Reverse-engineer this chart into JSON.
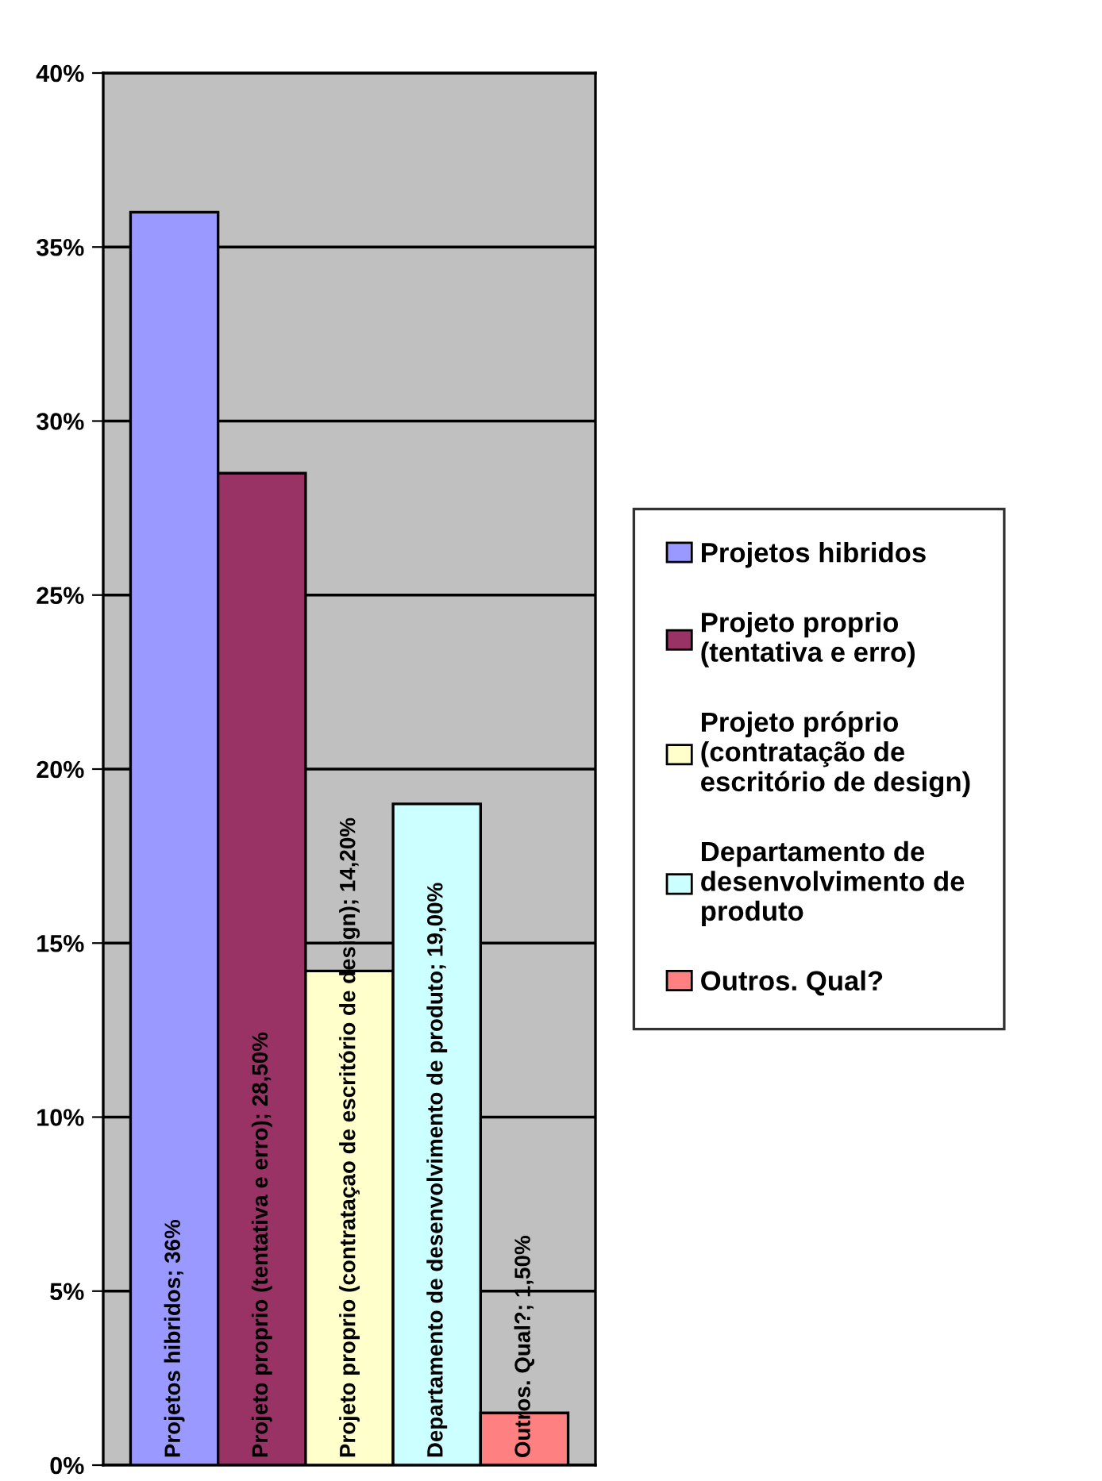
{
  "chart_data": {
    "type": "bar",
    "categories": [
      null
    ],
    "series": [
      {
        "name": "Projetos hibridos",
        "color": "#9999ff",
        "values": [
          36
        ],
        "value_labels": [
          "Projetos hibridos; 36%"
        ]
      },
      {
        "name": "Projeto proprio (tentativa e erro)",
        "color": "#993366",
        "values": [
          28.5
        ],
        "value_labels": [
          "Projeto proprio (tentativa e erro); 28,50%"
        ]
      },
      {
        "name": "Projeto próprio (contratação de escritório de design)",
        "color": "#ffffcc",
        "values": [
          14.2
        ],
        "value_labels": [
          "Projeto proprio (contrataçao de escritório de design); 14,20%"
        ]
      },
      {
        "name": "Departamento de desenvolvimento de produto",
        "color": "#ccffff",
        "values": [
          19
        ],
        "value_labels": [
          "Departamento de desenvolvimento de produto; 19,00%"
        ]
      },
      {
        "name": "Outros. Qual?",
        "color": "#ff8080",
        "values": [
          1.5
        ],
        "value_labels": [
          "Outros. Qual?; 1,50%"
        ]
      }
    ],
    "ylim": [
      0,
      40
    ],
    "yticks": [
      {
        "value": 0,
        "label": "0%"
      },
      {
        "value": 5,
        "label": "5%"
      },
      {
        "value": 10,
        "label": "10%"
      },
      {
        "value": 15,
        "label": "15%"
      },
      {
        "value": 20,
        "label": "20%"
      },
      {
        "value": 25,
        "label": "25%"
      },
      {
        "value": 30,
        "label": "30%"
      },
      {
        "value": 35,
        "label": "35%"
      },
      {
        "value": 40,
        "label": "40%"
      }
    ],
    "grid": "y",
    "legend": "right"
  }
}
